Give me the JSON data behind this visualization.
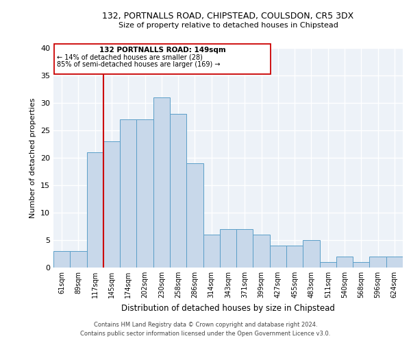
{
  "title1": "132, PORTNALLS ROAD, CHIPSTEAD, COULSDON, CR5 3DX",
  "title2": "Size of property relative to detached houses in Chipstead",
  "xlabel": "Distribution of detached houses by size in Chipstead",
  "ylabel": "Number of detached properties",
  "categories": [
    "61sqm",
    "89sqm",
    "117sqm",
    "145sqm",
    "174sqm",
    "202sqm",
    "230sqm",
    "258sqm",
    "286sqm",
    "314sqm",
    "343sqm",
    "371sqm",
    "399sqm",
    "427sqm",
    "455sqm",
    "483sqm",
    "511sqm",
    "540sqm",
    "568sqm",
    "596sqm",
    "624sqm"
  ],
  "values": [
    3,
    3,
    21,
    23,
    27,
    27,
    31,
    28,
    19,
    6,
    7,
    7,
    6,
    4,
    4,
    5,
    1,
    2,
    1,
    2,
    2
  ],
  "bar_color": "#c8d8ea",
  "bar_edge_color": "#5a9ec8",
  "red_line_color": "#cc0000",
  "annotation_box_edge_color": "#cc0000",
  "annotation_text1": "132 PORTNALLS ROAD: 149sqm",
  "annotation_text2": "← 14% of detached houses are smaller (28)",
  "annotation_text3": "85% of semi-detached houses are larger (169) →",
  "ylim": [
    0,
    40
  ],
  "yticks": [
    0,
    5,
    10,
    15,
    20,
    25,
    30,
    35,
    40
  ],
  "background_color": "#edf2f8",
  "grid_color": "#ffffff",
  "footer1": "Contains HM Land Registry data © Crown copyright and database right 2024.",
  "footer2": "Contains public sector information licensed under the Open Government Licence v3.0."
}
